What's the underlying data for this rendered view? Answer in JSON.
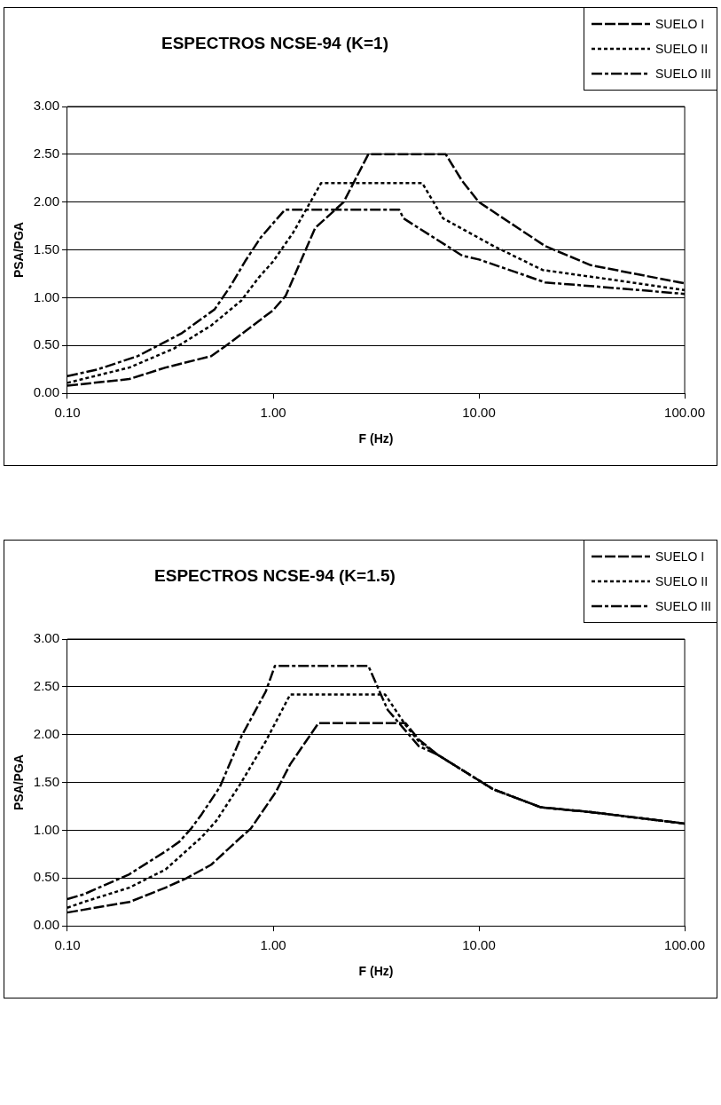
{
  "chart_data": [
    {
      "type": "line",
      "title": "ESPECTROS NCSE-94 (K=1)",
      "xlabel": "F (Hz)",
      "ylabel": "PSA/PGA",
      "log": "x",
      "grid": "y",
      "legend": "top right",
      "marker": "none",
      "xlim": [
        0.1,
        100
      ],
      "xticks": [
        {
          "value": 0.1,
          "label": "0.10"
        },
        {
          "value": 1,
          "label": "1.00"
        },
        {
          "value": 10,
          "label": "10.00"
        },
        {
          "value": 100,
          "label": "100.00"
        }
      ],
      "ylim": [
        0,
        3
      ],
      "yticks": [
        {
          "value": 0,
          "label": "0.00"
        },
        {
          "value": 0.5,
          "label": "0.50"
        },
        {
          "value": 1,
          "label": "1.00"
        },
        {
          "value": 1.5,
          "label": "1.50"
        },
        {
          "value": 2,
          "label": "2.00"
        },
        {
          "value": 2.5,
          "label": "2.50"
        },
        {
          "value": 3,
          "label": "3.00"
        }
      ],
      "series": [
        {
          "name": "SUELO I",
          "color": "#000000",
          "line_style": "dashed",
          "x": [
            0.1,
            0.2,
            0.3,
            0.5,
            0.6,
            1.0,
            1.15,
            1.6,
            2.2,
            2.9,
            6.9,
            8.3,
            10,
            21,
            35,
            100
          ],
          "values": [
            0.08,
            0.15,
            0.27,
            0.39,
            0.51,
            0.87,
            1.02,
            1.73,
            2.0,
            2.5,
            2.5,
            2.22,
            2.0,
            1.54,
            1.34,
            1.15
          ]
        },
        {
          "name": "SUELO II",
          "color": "#000000",
          "line_style": "dotted",
          "x": [
            0.1,
            0.2,
            0.33,
            0.5,
            0.7,
            0.85,
            1.0,
            1.25,
            1.71,
            5.3,
            6.7,
            11.8,
            20.4,
            35,
            100
          ],
          "values": [
            0.11,
            0.27,
            0.47,
            0.71,
            0.97,
            1.21,
            1.38,
            1.68,
            2.2,
            2.2,
            1.83,
            1.54,
            1.29,
            1.22,
            1.08
          ]
        },
        {
          "name": "SUELO III",
          "color": "#000000",
          "line_style": "dashdot",
          "x": [
            0.1,
            0.14,
            0.22,
            0.36,
            0.52,
            0.62,
            0.73,
            0.87,
            1.14,
            4.1,
            4.3,
            8.3,
            10,
            15,
            21,
            36,
            100
          ],
          "values": [
            0.18,
            0.25,
            0.39,
            0.63,
            0.88,
            1.12,
            1.38,
            1.63,
            1.92,
            1.92,
            1.83,
            1.44,
            1.4,
            1.27,
            1.16,
            1.12,
            1.04
          ]
        }
      ]
    },
    {
      "type": "line",
      "title": "ESPECTROS NCSE-94 (K=1.5)",
      "xlabel": "F (Hz)",
      "ylabel": "PSA/PGA",
      "log": "x",
      "grid": "y",
      "legend": "top right",
      "marker": "none",
      "xlim": [
        0.1,
        100
      ],
      "xticks": [
        {
          "value": 0.1,
          "label": "0.10"
        },
        {
          "value": 1,
          "label": "1.00"
        },
        {
          "value": 10,
          "label": "10.00"
        },
        {
          "value": 100,
          "label": "100.00"
        }
      ],
      "ylim": [
        0,
        3
      ],
      "yticks": [
        {
          "value": 0,
          "label": "0.00"
        },
        {
          "value": 0.5,
          "label": "0.50"
        },
        {
          "value": 1,
          "label": "1.00"
        },
        {
          "value": 1.5,
          "label": "1.50"
        },
        {
          "value": 2,
          "label": "2.00"
        },
        {
          "value": 2.5,
          "label": "2.50"
        },
        {
          "value": 3,
          "label": "3.00"
        }
      ],
      "series": [
        {
          "name": "SUELO I",
          "color": "#000000",
          "line_style": "dashed",
          "x": [
            0.1,
            0.2,
            0.3,
            0.38,
            0.5,
            0.7,
            0.78,
            1.03,
            1.21,
            1.66,
            4.4,
            5.1,
            6.3,
            11.7,
            20,
            35,
            100
          ],
          "values": [
            0.14,
            0.25,
            0.4,
            0.5,
            0.64,
            0.93,
            1.02,
            1.4,
            1.69,
            2.12,
            2.12,
            1.95,
            1.79,
            1.43,
            1.24,
            1.19,
            1.07
          ]
        },
        {
          "name": "SUELO II",
          "color": "#000000",
          "line_style": "dotted",
          "x": [
            0.1,
            0.12,
            0.2,
            0.3,
            0.45,
            0.53,
            0.7,
            0.92,
            1.21,
            3.5,
            4.4,
            5.1,
            6.3,
            11.7,
            20,
            35,
            100
          ],
          "values": [
            0.19,
            0.25,
            0.4,
            0.59,
            0.93,
            1.1,
            1.5,
            1.93,
            2.42,
            2.42,
            2.1,
            1.93,
            1.79,
            1.43,
            1.24,
            1.19,
            1.07
          ]
        },
        {
          "name": "SUELO III",
          "color": "#000000",
          "line_style": "dashdot",
          "x": [
            0.1,
            0.12,
            0.2,
            0.3,
            0.35,
            0.4,
            0.45,
            0.55,
            0.7,
            0.92,
            1.02,
            2.9,
            3.6,
            5.1,
            6.3,
            11.7,
            20,
            35,
            100
          ],
          "values": [
            0.28,
            0.33,
            0.54,
            0.78,
            0.88,
            1.02,
            1.17,
            1.45,
            1.98,
            2.45,
            2.72,
            2.72,
            2.26,
            1.88,
            1.79,
            1.43,
            1.24,
            1.19,
            1.07
          ]
        }
      ]
    }
  ]
}
